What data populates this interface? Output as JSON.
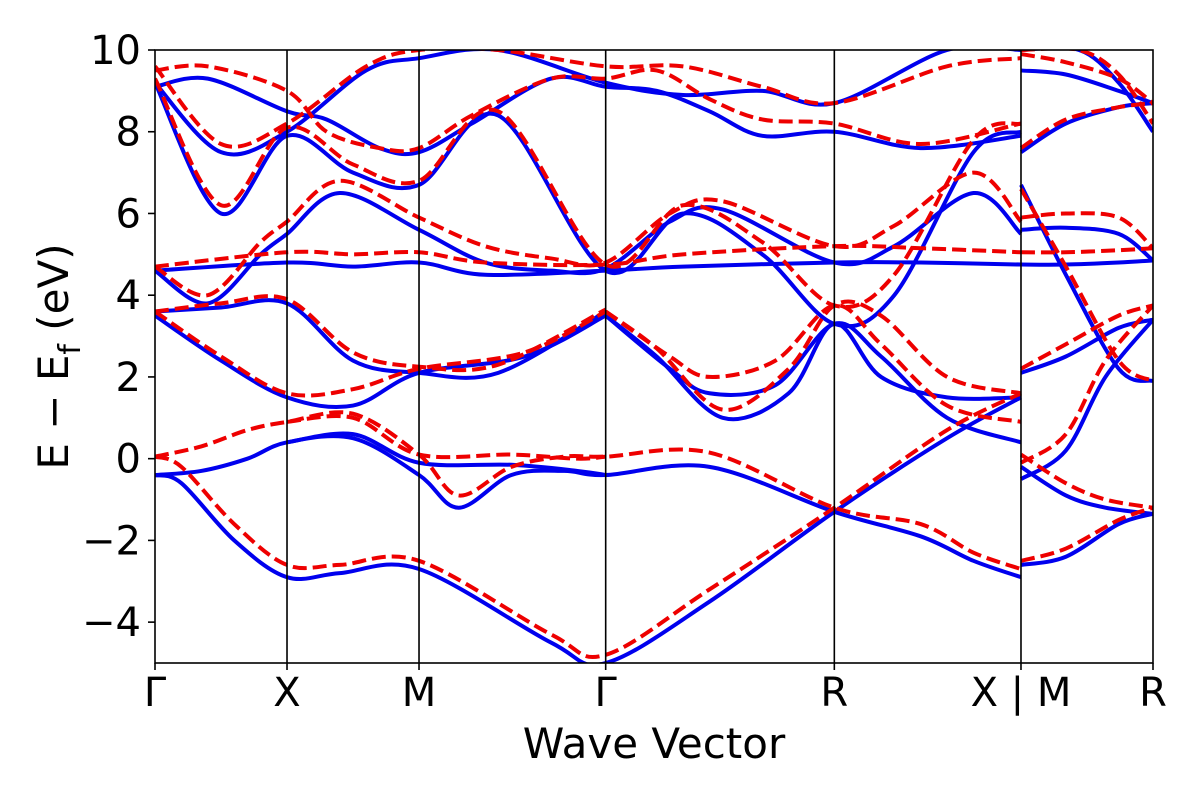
{
  "chart_data": {
    "type": "line",
    "title": "",
    "xlabel": "Wave Vector",
    "ylabel_parts": {
      "main": "E − E",
      "sub": "f",
      "unit": " (eV)"
    },
    "ylim": [
      -5,
      10
    ],
    "yticks": [
      -4,
      -2,
      0,
      2,
      4,
      6,
      8,
      10
    ],
    "ytick_labels": [
      "−4",
      "−2",
      "0",
      "2",
      "4",
      "6",
      "8",
      "10"
    ],
    "xlim": [
      0,
      7.6
    ],
    "kpoints": [
      {
        "pos": 0.0,
        "label": "Γ"
      },
      {
        "pos": 1.0,
        "label": "X"
      },
      {
        "pos": 2.0,
        "label": "M"
      },
      {
        "pos": 3.414,
        "label": "Γ"
      },
      {
        "pos": 5.146,
        "label": "R"
      },
      {
        "pos": 6.56,
        "label": "X | M"
      },
      {
        "pos": 7.56,
        "label": "R"
      }
    ],
    "colors": {
      "blue": "#0000ee",
      "red": "#ee0000"
    },
    "series": [
      {
        "name": "blue (solid)",
        "style": "solid",
        "color": "#0000ee",
        "bands": [
          {
            "x": [
              0,
              0.35,
              0.7,
              1.0,
              1.5,
              2.0,
              2.3,
              2.7,
              3.1,
              3.414,
              4.2,
              5.146,
              5.8,
              6.2,
              6.56
            ],
            "y": [
              -0.4,
              -0.3,
              0.0,
              0.4,
              0.5,
              -0.4,
              -1.2,
              -0.4,
              -0.3,
              -0.4,
              -0.2,
              -1.3,
              -1.9,
              -2.5,
              -2.9
            ]
          },
          {
            "x": [
              0,
              0.2,
              0.6,
              1.0,
              1.4,
              2.0,
              3.0,
              3.414,
              4.2,
              5.146,
              6.0,
              6.56
            ],
            "y": [
              -0.4,
              -0.6,
              -2.0,
              -2.9,
              -2.8,
              -2.7,
              -4.5,
              -5.0,
              -3.5,
              -1.3,
              0.5,
              1.5
            ]
          },
          {
            "x": [
              1.0,
              1.5,
              2.0,
              2.7,
              3.2,
              3.414
            ],
            "y": [
              0.4,
              0.6,
              -0.1,
              -0.15,
              -0.3,
              -0.4
            ]
          },
          {
            "x": [
              0,
              0.5,
              1.0,
              1.5,
              2.0,
              2.8,
              3.414
            ],
            "y": [
              3.5,
              2.4,
              1.5,
              1.3,
              2.1,
              2.5,
              3.5
            ]
          },
          {
            "x": [
              0,
              0.5,
              1.0,
              1.5,
              2.0,
              2.6,
              3.414
            ],
            "y": [
              3.6,
              3.7,
              3.8,
              2.4,
              2.1,
              2.1,
              3.6
            ]
          },
          {
            "x": [
              3.414,
              3.9,
              4.2,
              4.7,
              5.146,
              5.5,
              6.0,
              6.56
            ],
            "y": [
              3.5,
              2.2,
              1.6,
              1.8,
              3.3,
              2.5,
              1.0,
              0.4
            ]
          },
          {
            "x": [
              3.414,
              3.8,
              4.3,
              4.8,
              5.146,
              5.5,
              6.0,
              6.56
            ],
            "y": [
              3.5,
              2.5,
              1.0,
              1.6,
              3.3,
              2.0,
              1.5,
              1.5
            ]
          },
          {
            "x": [
              0,
              1.0,
              1.5,
              2.0,
              2.5,
              3.414,
              4.0,
              5.146,
              5.8,
              6.56
            ],
            "y": [
              4.6,
              4.8,
              4.7,
              4.8,
              4.5,
              4.6,
              4.7,
              4.8,
              4.8,
              4.75
            ]
          },
          {
            "x": [
              0,
              0.4,
              0.8,
              1.0,
              1.4,
              2.0,
              2.5,
              3.0,
              3.414,
              3.9,
              4.3,
              5.146,
              5.6,
              6.2,
              6.56
            ],
            "y": [
              4.6,
              3.8,
              5.0,
              5.5,
              6.5,
              5.6,
              4.8,
              4.6,
              4.65,
              5.8,
              6.1,
              4.8,
              5.2,
              6.5,
              5.5
            ]
          },
          {
            "x": [
              0,
              0.5,
              1.0,
              1.5,
              2.0,
              2.6,
              3.414,
              4.0,
              4.6,
              5.146,
              5.6,
              6.2,
              6.56
            ],
            "y": [
              9.2,
              6.0,
              7.9,
              7.0,
              6.7,
              8.4,
              4.6,
              6.0,
              5.0,
              3.3,
              4.0,
              7.5,
              8.0
            ]
          },
          {
            "x": [
              0,
              0.4,
              1.0,
              1.3,
              1.7,
              2.0,
              2.4,
              3.0,
              3.414,
              3.8,
              4.2,
              4.6,
              5.146,
              5.8,
              6.56
            ],
            "y": [
              9.1,
              9.3,
              8.5,
              8.3,
              7.6,
              7.5,
              8.2,
              9.3,
              9.1,
              9.0,
              8.5,
              7.9,
              8.0,
              7.6,
              7.9
            ]
          },
          {
            "x": [
              0,
              0.5,
              1.0,
              1.6,
              2.0,
              2.6,
              3.414,
              4.0,
              4.6,
              5.146,
              6.0,
              6.56
            ],
            "y": [
              9.2,
              7.5,
              8.0,
              9.5,
              9.8,
              10.0,
              9.2,
              8.9,
              9.0,
              8.7,
              10.0,
              10.0
            ]
          },
          {
            "x": [
              6.56,
              6.9,
              7.2,
              7.56
            ],
            "y": [
              -0.2,
              -0.9,
              -1.2,
              -1.35
            ]
          },
          {
            "x": [
              6.56,
              6.9,
              7.2,
              7.56
            ],
            "y": [
              -0.5,
              0.2,
              2.0,
              3.4
            ]
          },
          {
            "x": [
              6.56,
              6.9,
              7.3,
              7.56
            ],
            "y": [
              -2.6,
              -2.4,
              -1.6,
              -1.35
            ]
          },
          {
            "x": [
              6.56,
              6.9,
              7.3,
              7.56
            ],
            "y": [
              2.1,
              2.5,
              3.2,
              3.4
            ]
          },
          {
            "x": [
              6.56,
              6.9,
              7.3,
              7.56
            ],
            "y": [
              4.75,
              4.75,
              4.8,
              4.85
            ]
          },
          {
            "x": [
              6.56,
              6.9,
              7.3,
              7.56
            ],
            "y": [
              5.6,
              5.65,
              5.5,
              4.85
            ]
          },
          {
            "x": [
              6.56,
              6.9,
              7.3,
              7.56
            ],
            "y": [
              6.7,
              4.5,
              2.2,
              1.9
            ]
          },
          {
            "x": [
              6.56,
              6.9,
              7.3,
              7.56
            ],
            "y": [
              7.5,
              8.2,
              8.6,
              8.7
            ]
          },
          {
            "x": [
              6.56,
              6.9,
              7.3,
              7.56
            ],
            "y": [
              9.5,
              9.4,
              9.0,
              8.7
            ]
          },
          {
            "x": [
              6.56,
              7.0,
              7.3,
              7.56
            ],
            "y": [
              10.0,
              10.0,
              9.2,
              8.0
            ]
          }
        ]
      },
      {
        "name": "red (dashed)",
        "style": "dashed",
        "color": "#ee0000",
        "bands": [
          {
            "x": [
              0,
              0.35,
              0.7,
              1.0,
              1.5,
              2.0,
              2.3,
              2.7,
              3.1,
              3.414,
              4.2,
              5.146,
              5.8,
              6.2,
              6.56
            ],
            "y": [
              0.05,
              0.3,
              0.7,
              0.9,
              1.1,
              0.1,
              -0.9,
              -0.2,
              0.05,
              0.05,
              0.15,
              -1.2,
              -1.6,
              -2.3,
              -2.7
            ]
          },
          {
            "x": [
              0,
              0.2,
              0.6,
              1.0,
              1.4,
              2.0,
              3.0,
              3.414,
              4.2,
              5.146,
              6.0,
              6.56
            ],
            "y": [
              0.05,
              -0.2,
              -1.6,
              -2.6,
              -2.6,
              -2.5,
              -4.3,
              -4.8,
              -3.2,
              -1.2,
              0.7,
              1.6
            ]
          },
          {
            "x": [
              1.0,
              1.5,
              2.0,
              2.7,
              3.2,
              3.414
            ],
            "y": [
              0.9,
              1.0,
              0.1,
              0.1,
              0.0,
              0.05
            ]
          },
          {
            "x": [
              0,
              0.5,
              1.0,
              1.5,
              2.0,
              2.8,
              3.414
            ],
            "y": [
              3.6,
              2.5,
              1.6,
              1.7,
              2.2,
              2.6,
              3.6
            ]
          },
          {
            "x": [
              0,
              0.5,
              1.0,
              1.5,
              2.0,
              2.6,
              3.414
            ],
            "y": [
              3.6,
              3.8,
              3.9,
              2.6,
              2.25,
              2.3,
              3.65
            ]
          },
          {
            "x": [
              3.414,
              3.9,
              4.2,
              4.7,
              5.146,
              5.5,
              6.0,
              6.56
            ],
            "y": [
              3.6,
              2.5,
              2.0,
              2.4,
              3.75,
              2.8,
              1.3,
              0.9
            ]
          },
          {
            "x": [
              3.414,
              3.8,
              4.3,
              4.8,
              5.146,
              5.5,
              6.0,
              6.56
            ],
            "y": [
              3.6,
              2.7,
              1.2,
              2.2,
              3.75,
              3.5,
              2.0,
              1.6
            ]
          },
          {
            "x": [
              0,
              1.0,
              1.5,
              2.0,
              2.5,
              3.414,
              4.0,
              5.146,
              5.8,
              6.56
            ],
            "y": [
              4.7,
              5.05,
              5.0,
              5.05,
              4.8,
              4.75,
              5.0,
              5.2,
              5.15,
              5.05
            ]
          },
          {
            "x": [
              0,
              0.4,
              0.8,
              1.0,
              1.4,
              2.0,
              2.5,
              3.0,
              3.414,
              3.9,
              4.3,
              5.146,
              5.6,
              6.2,
              6.56
            ],
            "y": [
              4.7,
              4.0,
              5.3,
              5.8,
              6.8,
              5.9,
              5.2,
              4.9,
              4.8,
              6.0,
              6.3,
              5.2,
              5.7,
              7.0,
              5.8
            ]
          },
          {
            "x": [
              0,
              0.5,
              1.0,
              1.5,
              2.0,
              2.6,
              3.414,
              4.0,
              4.6,
              5.146,
              5.6,
              6.2,
              6.56
            ],
            "y": [
              9.3,
              6.2,
              8.1,
              7.2,
              6.8,
              8.5,
              4.75,
              6.2,
              5.3,
              3.75,
              4.5,
              7.8,
              8.2
            ]
          },
          {
            "x": [
              0,
              0.4,
              1.0,
              1.3,
              1.7,
              2.0,
              2.4,
              3.0,
              3.414,
              3.8,
              4.2,
              4.6,
              5.146,
              5.8,
              6.56
            ],
            "y": [
              9.5,
              9.6,
              9.0,
              8.0,
              7.6,
              7.6,
              8.4,
              9.3,
              9.3,
              9.5,
              8.8,
              8.3,
              8.2,
              7.7,
              8.2
            ]
          },
          {
            "x": [
              0,
              0.5,
              1.0,
              1.6,
              2.0,
              2.6,
              3.414,
              4.0,
              4.6,
              5.146,
              6.0,
              6.56
            ],
            "y": [
              9.6,
              7.7,
              8.2,
              9.6,
              10.0,
              10.0,
              9.6,
              9.6,
              9.1,
              8.7,
              9.6,
              9.8
            ]
          },
          {
            "x": [
              6.56,
              6.9,
              7.2,
              7.56
            ],
            "y": [
              0.1,
              -0.6,
              -1.0,
              -1.2
            ]
          },
          {
            "x": [
              6.56,
              6.9,
              7.2,
              7.56
            ],
            "y": [
              -0.1,
              0.6,
              2.4,
              3.75
            ]
          },
          {
            "x": [
              6.56,
              6.9,
              7.3,
              7.56
            ],
            "y": [
              -2.5,
              -2.2,
              -1.5,
              -1.2
            ]
          },
          {
            "x": [
              6.56,
              6.9,
              7.3,
              7.56
            ],
            "y": [
              2.2,
              2.8,
              3.5,
              3.75
            ]
          },
          {
            "x": [
              6.56,
              6.9,
              7.3,
              7.56
            ],
            "y": [
              5.05,
              5.05,
              5.1,
              5.15
            ]
          },
          {
            "x": [
              6.56,
              6.9,
              7.3,
              7.56
            ],
            "y": [
              5.9,
              6.0,
              5.9,
              5.15
            ]
          },
          {
            "x": [
              6.56,
              6.9,
              7.3,
              7.56
            ],
            "y": [
              6.6,
              4.7,
              2.4,
              1.9
            ]
          },
          {
            "x": [
              6.56,
              6.9,
              7.3,
              7.56
            ],
            "y": [
              7.6,
              8.3,
              8.6,
              8.7
            ]
          },
          {
            "x": [
              6.56,
              6.9,
              7.3,
              7.56
            ],
            "y": [
              9.9,
              9.7,
              9.3,
              8.7
            ]
          },
          {
            "x": [
              6.56,
              7.0,
              7.3,
              7.56
            ],
            "y": [
              10.0,
              10.0,
              9.4,
              8.2
            ]
          }
        ]
      }
    ]
  }
}
